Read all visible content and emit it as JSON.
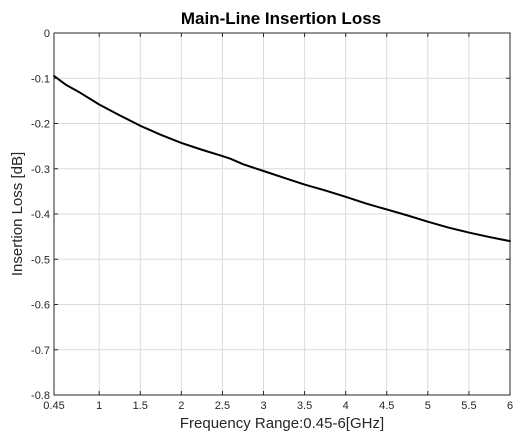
{
  "chart_data": {
    "type": "line",
    "title": "Main-Line Insertion Loss",
    "xlabel": "Frequency Range:0.45-6[GHz]",
    "ylabel": "Insertion Loss [dB]",
    "xlim": [
      0.45,
      6
    ],
    "ylim": [
      -0.8,
      0
    ],
    "grid": true,
    "xticks": [
      0.45,
      1,
      1.5,
      2,
      2.5,
      3,
      3.5,
      4,
      4.5,
      5,
      5.5,
      6
    ],
    "xtick_labels": [
      "0.45",
      "1",
      "1.5",
      "2",
      "2.5",
      "3",
      "3.5",
      "4",
      "4.5",
      "5",
      "5.5",
      "6"
    ],
    "yticks": [
      0,
      -0.1,
      -0.2,
      -0.3,
      -0.4,
      -0.5,
      -0.6,
      -0.7,
      -0.8
    ],
    "ytick_labels": [
      "0",
      "-0.1",
      "-0.2",
      "-0.3",
      "-0.4",
      "-0.5",
      "-0.6",
      "-0.7",
      "-0.8"
    ],
    "series": [
      {
        "color": "#000000",
        "x": [
          0.45,
          0.6,
          0.75,
          1.0,
          1.25,
          1.5,
          1.75,
          2.0,
          2.25,
          2.5,
          2.6,
          2.75,
          3.0,
          3.25,
          3.5,
          3.75,
          4.0,
          4.25,
          4.5,
          4.75,
          5.0,
          5.25,
          5.5,
          5.75,
          6.0
        ],
        "y": [
          -0.095,
          -0.115,
          -0.13,
          -0.158,
          -0.182,
          -0.205,
          -0.225,
          -0.243,
          -0.258,
          -0.272,
          -0.278,
          -0.29,
          -0.305,
          -0.32,
          -0.335,
          -0.348,
          -0.362,
          -0.377,
          -0.39,
          -0.403,
          -0.417,
          -0.43,
          -0.441,
          -0.451,
          -0.46
        ]
      }
    ]
  }
}
